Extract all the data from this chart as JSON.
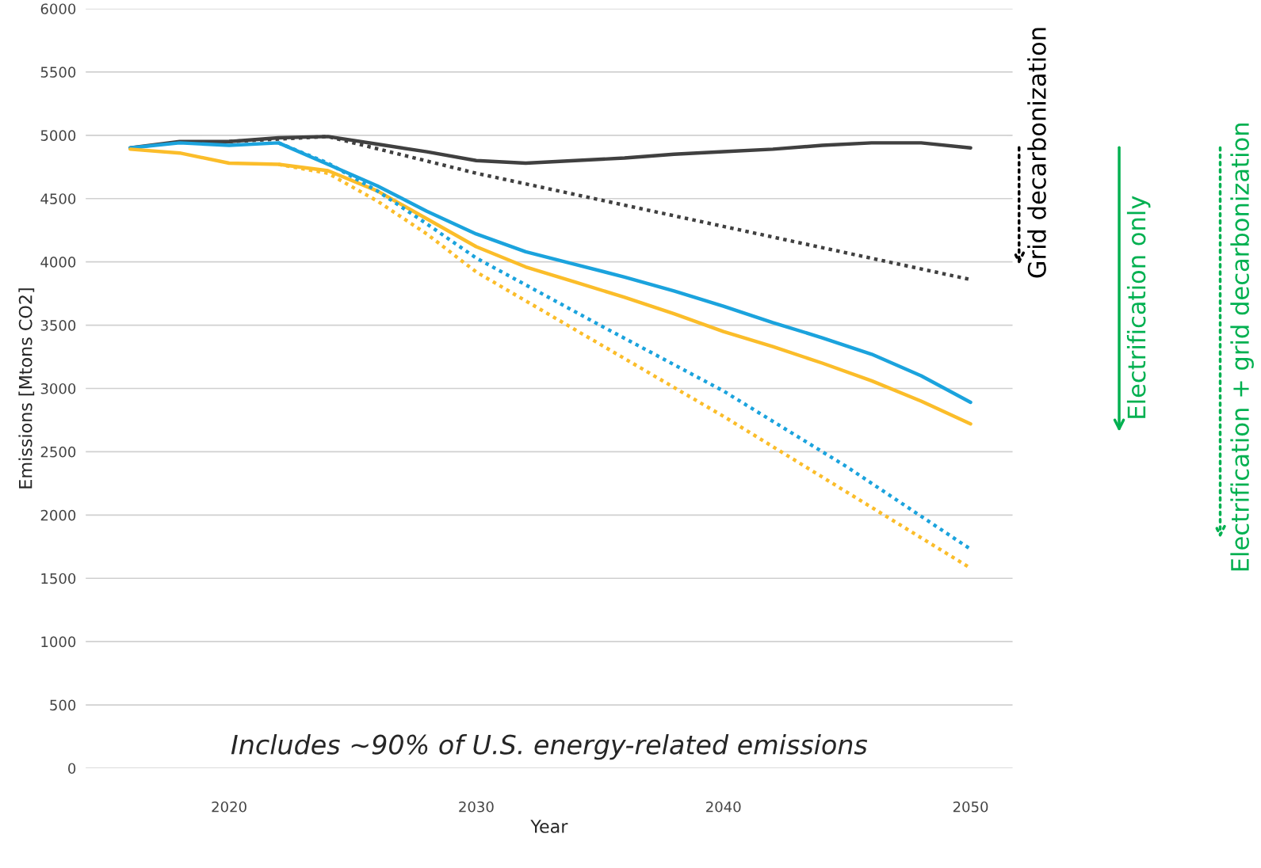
{
  "chart_data": {
    "type": "line",
    "xlabel": "Year",
    "ylabel": "Emissions [Mtons CO2]",
    "xlim": [
      2014.2,
      2051.7
    ],
    "ylim": [
      0,
      6000
    ],
    "xticks": [
      2020,
      2030,
      2040,
      2050
    ],
    "yticks": [
      0,
      500,
      1000,
      1500,
      2000,
      2500,
      3000,
      3500,
      4000,
      4500,
      5000,
      5500,
      6000
    ],
    "grid": "y",
    "marker": "none",
    "series": [
      {
        "color": "#404040",
        "line_style": "solid",
        "x": [
          2016,
          2018,
          2020,
          2022,
          2024,
          2026,
          2028,
          2030,
          2032,
          2034,
          2036,
          2038,
          2040,
          2042,
          2044,
          2046,
          2048,
          2050
        ],
        "values": [
          4900,
          4950,
          4950,
          4980,
          4990,
          4930,
          4870,
          4800,
          4780,
          4800,
          4820,
          4850,
          4870,
          4890,
          4920,
          4940,
          4940,
          4900
        ]
      },
      {
        "color": "#404040",
        "line_style": "dotted",
        "x": [
          2020,
          2024,
          2030,
          2040,
          2050
        ],
        "values": [
          4950,
          4990,
          4700,
          4280,
          3860
        ]
      },
      {
        "color": "#1ba3dd",
        "line_style": "solid",
        "x": [
          2016,
          2018,
          2020,
          2022,
          2024,
          2026,
          2028,
          2030,
          2032,
          2034,
          2036,
          2038,
          2040,
          2042,
          2044,
          2046,
          2048,
          2050
        ],
        "values": [
          4900,
          4940,
          4920,
          4940,
          4770,
          4600,
          4400,
          4220,
          4080,
          3980,
          3880,
          3770,
          3650,
          3520,
          3400,
          3270,
          3100,
          2890
        ]
      },
      {
        "color": "#fbbd2a",
        "line_style": "solid",
        "x": [
          2016,
          2018,
          2020,
          2022,
          2024,
          2026,
          2028,
          2030,
          2032,
          2034,
          2036,
          2038,
          2040,
          2042,
          2044,
          2046,
          2048,
          2050
        ],
        "values": [
          4890,
          4860,
          4780,
          4770,
          4720,
          4560,
          4340,
          4120,
          3960,
          3840,
          3720,
          3590,
          3450,
          3330,
          3200,
          3060,
          2900,
          2720
        ]
      },
      {
        "color": "#1ba3dd",
        "line_style": "dotted",
        "x": [
          2022,
          2024,
          2026,
          2028,
          2030,
          2035,
          2040,
          2045,
          2050
        ],
        "values": [
          4940,
          4780,
          4560,
          4300,
          4030,
          3500,
          2980,
          2380,
          1730
        ]
      },
      {
        "color": "#fbbd2a",
        "line_style": "dotted",
        "x": [
          2022,
          2024,
          2026,
          2028,
          2030,
          2035,
          2040,
          2045,
          2050
        ],
        "values": [
          4770,
          4700,
          4480,
          4220,
          3920,
          3350,
          2780,
          2180,
          1580
        ]
      }
    ],
    "annotations": [
      "Includes ~90% of U.S. energy-related emissions",
      "Grid decarbonization",
      "Electrification only",
      "Electrification + grid decarbonization"
    ]
  }
}
